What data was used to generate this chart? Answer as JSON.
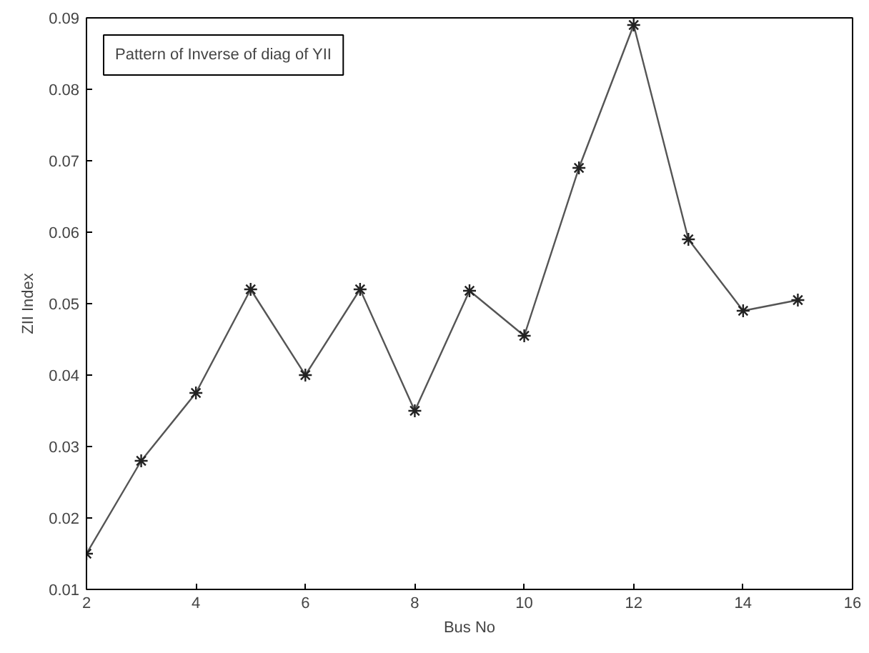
{
  "chart_data": {
    "type": "line",
    "xlabel": "Bus No",
    "ylabel": "ZII Index",
    "annotations": [
      "Pattern of Inverse of diag of YII"
    ],
    "x": [
      2,
      3,
      4,
      5,
      6,
      7,
      8,
      9,
      10,
      11,
      12,
      13,
      14,
      15
    ],
    "series": [
      {
        "color": "#555555",
        "values": [
          0.015,
          0.028,
          0.0375,
          0.052,
          0.04,
          0.052,
          0.035,
          0.0518,
          0.0455,
          0.069,
          0.089,
          0.059,
          0.049,
          0.0505
        ]
      }
    ],
    "xlim": [
      2,
      16
    ],
    "ylim": [
      0.01,
      0.09
    ],
    "xticks": [
      2,
      4,
      6,
      8,
      10,
      12,
      14,
      16
    ],
    "yticks": [
      {
        "value": 0.01,
        "label": "0.01"
      },
      {
        "value": 0.02,
        "label": "0.02"
      },
      {
        "value": 0.03,
        "label": "0.03"
      },
      {
        "value": 0.04,
        "label": "0.04"
      },
      {
        "value": 0.05,
        "label": "0.05"
      },
      {
        "value": 0.06,
        "label": "0.06"
      },
      {
        "value": 0.07,
        "label": "0.07"
      },
      {
        "value": 0.08,
        "label": "0.08"
      },
      {
        "value": 0.09,
        "label": "0.09"
      }
    ],
    "grid": false,
    "marker": "cross",
    "line_style": "solid"
  }
}
